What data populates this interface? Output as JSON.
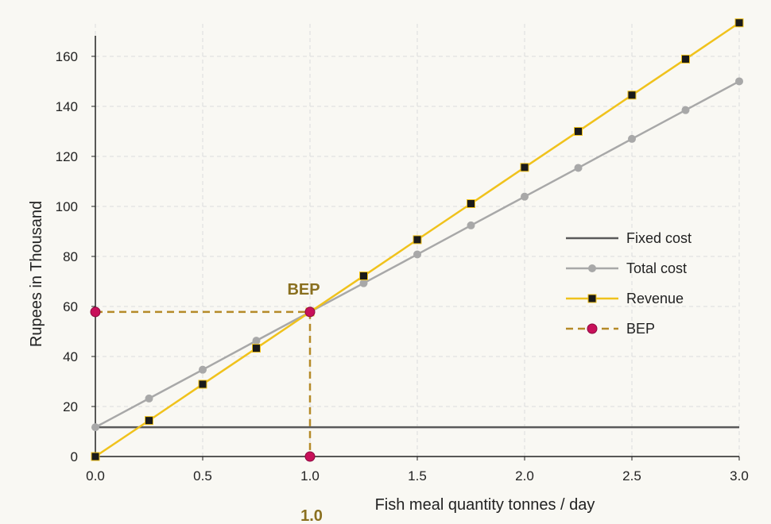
{
  "chart_data": {
    "type": "line",
    "xlabel": "Fish meal quantity tonnes  / day",
    "ylabel": "Rupees in Thousand",
    "xlim": [
      0,
      3
    ],
    "ylim": [
      0,
      173
    ],
    "x_ticks": [
      "0.0",
      "0.5",
      "1.0",
      "1.5",
      "2.0",
      "2.5",
      "3.0"
    ],
    "y_ticks": [
      "0",
      "20",
      "40",
      "60",
      "80",
      "100",
      "120",
      "140",
      "160"
    ],
    "grid": true,
    "legend_position": "right",
    "series": [
      {
        "name": "Fixed cost",
        "color": "#5a5a5a",
        "marker": "none",
        "x": [
          0,
          3
        ],
        "y": [
          11.7,
          11.7
        ]
      },
      {
        "name": "Total cost",
        "color": "#a8a8a8",
        "marker": "circle",
        "x": [
          0,
          0.25,
          0.5,
          0.75,
          1.0,
          1.25,
          1.5,
          1.75,
          2.0,
          2.25,
          2.5,
          2.75,
          3.0
        ],
        "y": [
          11.7,
          23.2,
          34.7,
          46.3,
          57.8,
          69.3,
          80.8,
          92.4,
          103.9,
          115.4,
          127.0,
          138.5,
          150.0
        ]
      },
      {
        "name": "Revenue",
        "color": "#f0c21c",
        "marker": "square",
        "x": [
          0,
          0.25,
          0.5,
          0.75,
          1.0,
          1.25,
          1.5,
          1.75,
          2.0,
          2.25,
          2.5,
          2.75,
          3.0
        ],
        "y": [
          0,
          14.4,
          28.9,
          43.3,
          57.8,
          72.2,
          86.7,
          101.1,
          115.6,
          130.0,
          144.5,
          158.9,
          173.4
        ]
      },
      {
        "name": "BEP",
        "color": "#b58a28",
        "marker": "circle",
        "marker_color": "#c8105a",
        "dashed": true,
        "x": [
          0,
          1.0,
          1.0
        ],
        "y": [
          57.8,
          57.8,
          0
        ]
      }
    ],
    "annotations": [
      {
        "text": "BEP",
        "x": 1.0,
        "y": 57.8,
        "color": "#8a7020"
      },
      {
        "text": "1.0",
        "x": 1.0,
        "color": "#8a7020"
      }
    ]
  }
}
